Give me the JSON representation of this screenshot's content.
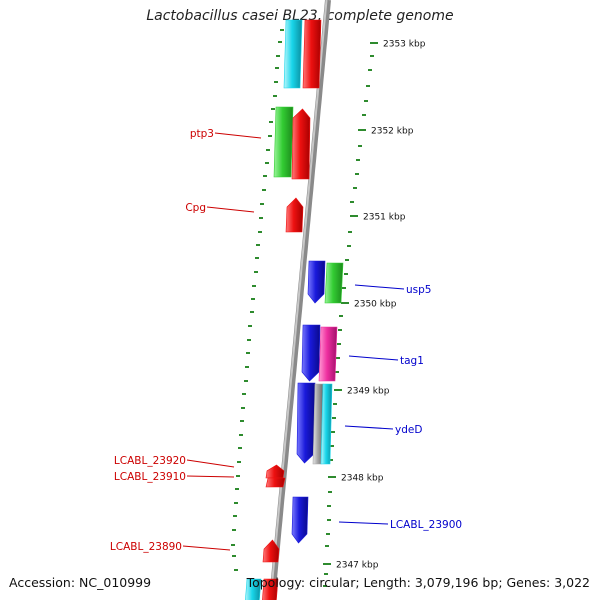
{
  "title": "Lactobacillus casei BL23, complete genome",
  "footer": {
    "accession_label": "Accession:",
    "accession": "NC_010999",
    "topology_label": "Topology:",
    "topology": "circular",
    "length_label": "Length:",
    "length": "3,079,196 bp",
    "genes_label": "Genes:",
    "genes": "3,022"
  },
  "colors": {
    "backbone": "#8a8a8a",
    "tick": "#2e8b2e",
    "label_left": "#cc0000",
    "label_right": "#0000cc",
    "red": "#ee1111",
    "green": "#33cc33",
    "blue": "#1a1adb",
    "cyan": "#19d6ea",
    "magenta": "#ee2fa0",
    "gray": "#a8a8a8"
  },
  "scale_labels": [
    "2353 kbp",
    "2352 kbp",
    "2351 kbp",
    "2350 kbp",
    "2349 kbp",
    "2348 kbp",
    "2347 kbp"
  ],
  "gene_labels_left": [
    "ptp3",
    "Cpg",
    "LCABL_23920",
    "LCABL_23910",
    "LCABL_23890"
  ],
  "gene_labels_right": [
    "usp5",
    "tag1",
    "ydeD",
    "LCABL_23900"
  ],
  "features": [
    {
      "color": "cyan",
      "label": ""
    },
    {
      "color": "red",
      "label": ""
    },
    {
      "color": "green",
      "label": "ptp3"
    },
    {
      "color": "red",
      "label": "ptp3"
    },
    {
      "color": "red",
      "label": "Cpg"
    },
    {
      "color": "blue",
      "label": "usp5"
    },
    {
      "color": "green",
      "label": "usp5"
    },
    {
      "color": "blue",
      "label": "tag1"
    },
    {
      "color": "magenta",
      "label": "tag1"
    },
    {
      "color": "blue",
      "label": "ydeD"
    },
    {
      "color": "gray",
      "label": "ydeD"
    },
    {
      "color": "cyan",
      "label": "ydeD"
    },
    {
      "color": "red",
      "label": "LCABL_23920"
    },
    {
      "color": "red",
      "label": "LCABL_23910"
    },
    {
      "color": "blue",
      "label": "LCABL_23900"
    },
    {
      "color": "red",
      "label": "LCABL_23890"
    },
    {
      "color": "cyan",
      "label": ""
    },
    {
      "color": "red",
      "label": ""
    }
  ]
}
